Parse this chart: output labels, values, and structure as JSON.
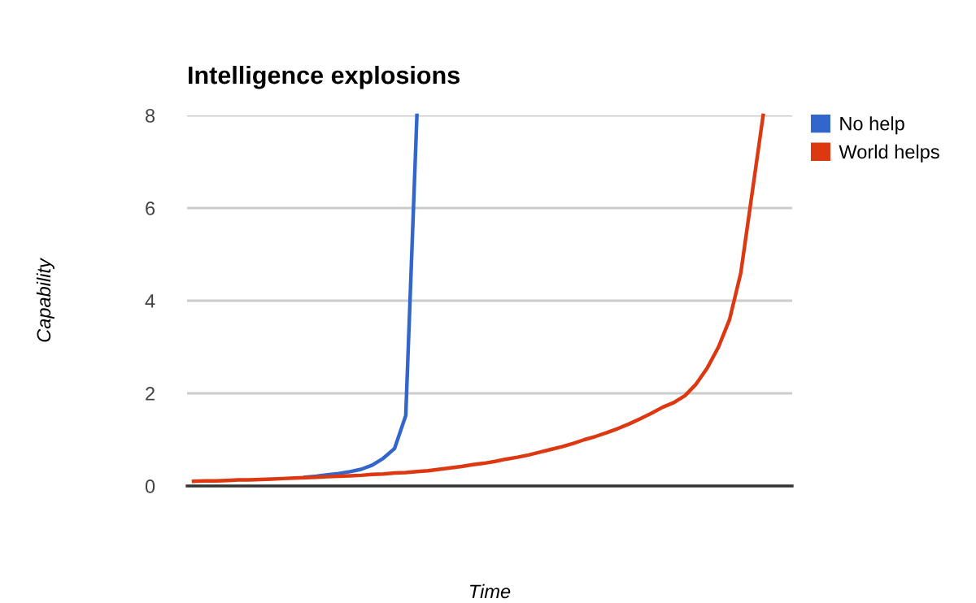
{
  "chart_data": {
    "type": "line",
    "title": "Intelligence explosions",
    "xlabel": "Time",
    "ylabel": "Capability",
    "categories": [
      null,
      null,
      null,
      null,
      null,
      null,
      null,
      null,
      null,
      null,
      null,
      null,
      null,
      null,
      null,
      null,
      null,
      null,
      null,
      null,
      null,
      null,
      null,
      null,
      null,
      null,
      null,
      null,
      null,
      null,
      null,
      null,
      null,
      null,
      null,
      null,
      null,
      null,
      null,
      null,
      null,
      null,
      null,
      null,
      null,
      null,
      null,
      null,
      null,
      null,
      null,
      null
    ],
    "series": [
      {
        "name": "No help",
        "color": "#3366cc",
        "values": [
          null,
          null,
          null,
          null,
          null,
          null,
          null,
          null,
          null,
          null,
          0.19,
          0.21,
          0.24,
          0.27,
          0.31,
          0.36,
          0.45,
          0.6,
          0.81,
          1.52,
          8,
          null,
          null,
          null,
          null,
          null,
          null,
          null,
          null,
          null,
          null,
          null,
          null,
          null,
          null,
          null,
          null,
          null,
          null,
          null,
          null,
          null,
          null,
          null,
          null,
          null,
          null,
          null,
          null,
          null,
          null,
          null
        ]
      },
      {
        "name": "World helps",
        "color": "#dc3912",
        "values": [
          0.1,
          0.11,
          0.11,
          0.12,
          0.13,
          0.13,
          0.14,
          0.15,
          0.16,
          0.17,
          0.18,
          0.19,
          0.2,
          0.21,
          0.22,
          0.23,
          0.25,
          0.26,
          0.28,
          0.29,
          0.31,
          0.33,
          0.36,
          0.39,
          0.42,
          0.46,
          0.49,
          0.53,
          0.58,
          0.62,
          0.67,
          0.73,
          0.79,
          0.85,
          0.92,
          1.0,
          1.07,
          1.15,
          1.24,
          1.34,
          1.45,
          1.57,
          1.7,
          1.8,
          1.95,
          2.2,
          2.55,
          3.0,
          3.6,
          4.6,
          6.3,
          8
        ]
      }
    ],
    "ylim": [
      0,
      8
    ],
    "yticks": [
      0,
      2,
      4,
      6,
      8
    ],
    "grid": "y",
    "legend": "top right",
    "marker": "none",
    "line_style": "solid"
  }
}
